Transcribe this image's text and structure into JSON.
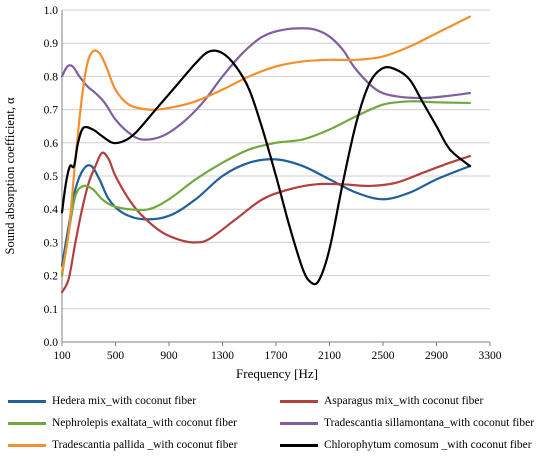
{
  "chart_data": {
    "type": "line",
    "title": "",
    "xlabel": "Frequency [Hz]",
    "ylabel": "Sound absorption coefficient, α",
    "xlim": [
      100,
      3300
    ],
    "ylim": [
      0,
      1.0
    ],
    "x_ticks": [
      "100",
      "500",
      "900",
      "1300",
      "1700",
      "2100",
      "2500",
      "2900",
      "3300"
    ],
    "y_ticks": [
      "0.0",
      "0.1",
      "0.2",
      "0.3",
      "0.4",
      "0.5",
      "0.6",
      "0.7",
      "0.8",
      "0.9",
      "1.0"
    ],
    "grid": "horizontal",
    "legend_position": "bottom",
    "series": [
      {
        "name": "Hedera mix_with coconut fiber",
        "color": "#1f5f9a",
        "points": [
          [
            100,
            0.23
          ],
          [
            150,
            0.35
          ],
          [
            200,
            0.46
          ],
          [
            260,
            0.52
          ],
          [
            320,
            0.53
          ],
          [
            380,
            0.49
          ],
          [
            450,
            0.43
          ],
          [
            550,
            0.39
          ],
          [
            700,
            0.37
          ],
          [
            900,
            0.38
          ],
          [
            1100,
            0.43
          ],
          [
            1300,
            0.5
          ],
          [
            1500,
            0.54
          ],
          [
            1700,
            0.55
          ],
          [
            1900,
            0.53
          ],
          [
            2100,
            0.49
          ],
          [
            2300,
            0.45
          ],
          [
            2500,
            0.43
          ],
          [
            2700,
            0.45
          ],
          [
            2900,
            0.49
          ],
          [
            3150,
            0.53
          ]
        ]
      },
      {
        "name": "Asparagus mix_with coconut fiber",
        "color": "#b0413e",
        "points": [
          [
            100,
            0.15
          ],
          [
            150,
            0.19
          ],
          [
            200,
            0.3
          ],
          [
            250,
            0.4
          ],
          [
            300,
            0.48
          ],
          [
            350,
            0.53
          ],
          [
            400,
            0.57
          ],
          [
            450,
            0.55
          ],
          [
            500,
            0.5
          ],
          [
            600,
            0.43
          ],
          [
            700,
            0.38
          ],
          [
            850,
            0.33
          ],
          [
            1000,
            0.305
          ],
          [
            1100,
            0.3
          ],
          [
            1200,
            0.31
          ],
          [
            1400,
            0.37
          ],
          [
            1600,
            0.43
          ],
          [
            1800,
            0.46
          ],
          [
            2000,
            0.475
          ],
          [
            2200,
            0.475
          ],
          [
            2400,
            0.47
          ],
          [
            2600,
            0.48
          ],
          [
            2800,
            0.51
          ],
          [
            3000,
            0.54
          ],
          [
            3150,
            0.56
          ]
        ]
      },
      {
        "name": "Nephrolepis exaltata_with coconut fiber",
        "color": "#71a840",
        "points": [
          [
            100,
            0.2
          ],
          [
            150,
            0.33
          ],
          [
            200,
            0.44
          ],
          [
            260,
            0.47
          ],
          [
            330,
            0.46
          ],
          [
            400,
            0.43
          ],
          [
            480,
            0.41
          ],
          [
            600,
            0.4
          ],
          [
            750,
            0.4
          ],
          [
            900,
            0.43
          ],
          [
            1100,
            0.49
          ],
          [
            1300,
            0.54
          ],
          [
            1500,
            0.58
          ],
          [
            1700,
            0.6
          ],
          [
            1900,
            0.61
          ],
          [
            2100,
            0.64
          ],
          [
            2300,
            0.68
          ],
          [
            2500,
            0.715
          ],
          [
            2700,
            0.725
          ],
          [
            2900,
            0.722
          ],
          [
            3150,
            0.72
          ]
        ]
      },
      {
        "name": "Tradescantia sillamontana_with coconut fiber",
        "color": "#7f5fa0",
        "points": [
          [
            100,
            0.8
          ],
          [
            140,
            0.83
          ],
          [
            180,
            0.83
          ],
          [
            230,
            0.8
          ],
          [
            290,
            0.77
          ],
          [
            350,
            0.75
          ],
          [
            420,
            0.72
          ],
          [
            500,
            0.67
          ],
          [
            600,
            0.63
          ],
          [
            700,
            0.61
          ],
          [
            850,
            0.62
          ],
          [
            1000,
            0.66
          ],
          [
            1150,
            0.72
          ],
          [
            1300,
            0.8
          ],
          [
            1450,
            0.87
          ],
          [
            1600,
            0.92
          ],
          [
            1750,
            0.94
          ],
          [
            1900,
            0.945
          ],
          [
            2000,
            0.94
          ],
          [
            2100,
            0.92
          ],
          [
            2200,
            0.88
          ],
          [
            2300,
            0.82
          ],
          [
            2450,
            0.76
          ],
          [
            2600,
            0.74
          ],
          [
            2800,
            0.735
          ],
          [
            3000,
            0.742
          ],
          [
            3150,
            0.75
          ]
        ]
      },
      {
        "name": "Tradescantia pallida _with coconut fiber",
        "color": "#f28f2e",
        "points": [
          [
            100,
            0.21
          ],
          [
            150,
            0.33
          ],
          [
            200,
            0.55
          ],
          [
            250,
            0.74
          ],
          [
            290,
            0.84
          ],
          [
            330,
            0.875
          ],
          [
            380,
            0.87
          ],
          [
            430,
            0.83
          ],
          [
            500,
            0.76
          ],
          [
            600,
            0.715
          ],
          [
            750,
            0.7
          ],
          [
            900,
            0.705
          ],
          [
            1100,
            0.725
          ],
          [
            1300,
            0.76
          ],
          [
            1500,
            0.8
          ],
          [
            1700,
            0.83
          ],
          [
            1900,
            0.845
          ],
          [
            2100,
            0.85
          ],
          [
            2300,
            0.85
          ],
          [
            2500,
            0.86
          ],
          [
            2700,
            0.89
          ],
          [
            2900,
            0.93
          ],
          [
            3150,
            0.98
          ]
        ]
      },
      {
        "name": "Chlorophytum comosum _with coconut fiber",
        "color": "#000000",
        "points": [
          [
            100,
            0.39
          ],
          [
            130,
            0.48
          ],
          [
            160,
            0.53
          ],
          [
            190,
            0.53
          ],
          [
            220,
            0.6
          ],
          [
            260,
            0.645
          ],
          [
            330,
            0.64
          ],
          [
            400,
            0.62
          ],
          [
            480,
            0.6
          ],
          [
            560,
            0.605
          ],
          [
            650,
            0.63
          ],
          [
            800,
            0.7
          ],
          [
            950,
            0.77
          ],
          [
            1100,
            0.84
          ],
          [
            1200,
            0.875
          ],
          [
            1300,
            0.87
          ],
          [
            1400,
            0.83
          ],
          [
            1500,
            0.76
          ],
          [
            1600,
            0.64
          ],
          [
            1700,
            0.5
          ],
          [
            1800,
            0.35
          ],
          [
            1900,
            0.22
          ],
          [
            1960,
            0.18
          ],
          [
            2020,
            0.185
          ],
          [
            2100,
            0.28
          ],
          [
            2200,
            0.48
          ],
          [
            2300,
            0.66
          ],
          [
            2400,
            0.78
          ],
          [
            2500,
            0.825
          ],
          [
            2600,
            0.82
          ],
          [
            2700,
            0.79
          ],
          [
            2800,
            0.72
          ],
          [
            2900,
            0.65
          ],
          [
            3000,
            0.58
          ],
          [
            3150,
            0.53
          ]
        ]
      }
    ]
  }
}
